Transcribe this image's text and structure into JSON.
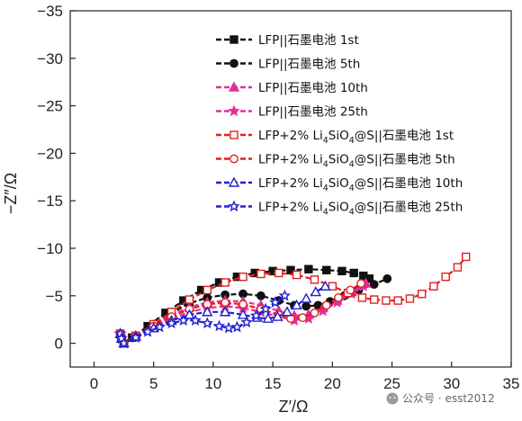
{
  "chart_data": {
    "type": "line",
    "xlabel": "Z′/Ω",
    "ylabel": "−Z″/Ω",
    "xlim": [
      -2,
      35
    ],
    "ylim": [
      2.5,
      -35
    ],
    "x_ticks": [
      0,
      5,
      10,
      15,
      20,
      25,
      30,
      35
    ],
    "y_ticks": [
      0,
      -5,
      -10,
      -15,
      -20,
      -25,
      -30,
      -35
    ],
    "y_axis_inverted": true,
    "legend_position": "top-right",
    "series": [
      {
        "name": "LFP||石墨电池 1st",
        "name_parts": [
          {
            "t": "LFP||石墨电池 1st"
          }
        ],
        "color": "#111111",
        "marker": "square-filled",
        "x": [
          2.2,
          2.3,
          2.5,
          3.2,
          4.5,
          6,
          7.5,
          9,
          10.5,
          12,
          13.5,
          15,
          16.5,
          18,
          19.5,
          20.8,
          21.8,
          22.6,
          23.1
        ],
        "y": [
          -1.0,
          -0.5,
          0,
          -0.6,
          -1.8,
          -3.2,
          -4.5,
          -5.6,
          -6.4,
          -7.0,
          -7.4,
          -7.6,
          -7.7,
          -7.8,
          -7.7,
          -7.6,
          -7.4,
          -7.1,
          -6.8
        ]
      },
      {
        "name": "LFP||石墨电池 5th",
        "name_parts": [
          {
            "t": "LFP||石墨电池 5th"
          }
        ],
        "color": "#111111",
        "marker": "circle-filled",
        "x": [
          2.2,
          2.3,
          2.5,
          3.5,
          5,
          6.5,
          8,
          9.5,
          11,
          12.5,
          14,
          15.5,
          16.8,
          17.8,
          18.8,
          19.8,
          21,
          22.2,
          23.5,
          24.6
        ],
        "y": [
          -1.0,
          -0.5,
          0,
          -0.8,
          -2.0,
          -3.2,
          -4.2,
          -4.8,
          -5.1,
          -5.2,
          -5.0,
          -4.5,
          -4.0,
          -3.9,
          -4.0,
          -4.4,
          -5.0,
          -5.6,
          -6.2,
          -6.8
        ]
      },
      {
        "name": "LFP||石墨电池 10th",
        "name_parts": [
          {
            "t": "LFP||石墨电池 10th"
          }
        ],
        "color": "#e0309a",
        "marker": "triangle-filled",
        "x": [
          2.2,
          2.3,
          2.5,
          3.5,
          5,
          6.5,
          8,
          9.5,
          11,
          12.5,
          14,
          15.5,
          16.8,
          18,
          19.2,
          20.4,
          21.6,
          22.8
        ],
        "y": [
          -1.0,
          -0.5,
          0,
          -0.8,
          -1.9,
          -3.0,
          -3.8,
          -4.3,
          -4.5,
          -4.4,
          -4.0,
          -3.4,
          -2.9,
          -3.0,
          -3.7,
          -4.5,
          -5.4,
          -6.3
        ]
      },
      {
        "name": "LFP||石墨电池 25th",
        "name_parts": [
          {
            "t": "LFP||石墨电池 25th"
          }
        ],
        "color": "#e0309a",
        "marker": "star-filled",
        "x": [
          2.2,
          2.3,
          2.5,
          3.5,
          5,
          6.5,
          8,
          9.5,
          11,
          12.5,
          14,
          15.5,
          16.8,
          18,
          19.2,
          20.4,
          21.6,
          22.6
        ],
        "y": [
          -1.0,
          -0.5,
          0,
          -0.7,
          -1.7,
          -2.6,
          -3.3,
          -3.7,
          -3.9,
          -3.7,
          -3.3,
          -2.8,
          -2.4,
          -2.6,
          -3.4,
          -4.3,
          -5.2,
          -6.0
        ]
      },
      {
        "name": "LFP+2% Li4SiO4@S||石墨电池 1st",
        "name_parts": [
          {
            "t": "LFP+2% Li"
          },
          {
            "t": "4",
            "sub": true
          },
          {
            "t": "SiO"
          },
          {
            "t": "4",
            "sub": true
          },
          {
            "t": "@S||石墨电池 1st"
          }
        ],
        "color": "#e02020",
        "marker": "square-open",
        "x": [
          2.2,
          2.3,
          2.5,
          3.5,
          5,
          6.5,
          8,
          9.5,
          11,
          12.5,
          14,
          15.5,
          17,
          18.5,
          20,
          21.3,
          22.5,
          23.5,
          24.5,
          25.5,
          26.5,
          27.5,
          28.5,
          29.5,
          30.5,
          31.2
        ],
        "y": [
          -1.0,
          -0.5,
          0,
          -0.8,
          -2.0,
          -3.3,
          -4.6,
          -5.6,
          -6.4,
          -7.0,
          -7.3,
          -7.4,
          -7.2,
          -6.7,
          -6.0,
          -5.3,
          -4.8,
          -4.6,
          -4.5,
          -4.5,
          -4.7,
          -5.2,
          -6.0,
          -7.0,
          -8.0,
          -9.1
        ]
      },
      {
        "name": "LFP+2% Li4SiO4@S||石墨电池 5th",
        "name_parts": [
          {
            "t": "LFP+2% Li"
          },
          {
            "t": "4",
            "sub": true
          },
          {
            "t": "SiO"
          },
          {
            "t": "4",
            "sub": true
          },
          {
            "t": "@S||石墨电池 5th"
          }
        ],
        "color": "#e02020",
        "marker": "circle-open",
        "x": [
          2.2,
          2.3,
          2.5,
          3.5,
          5,
          6.5,
          8,
          9.5,
          11,
          12.5,
          14,
          15.5,
          16.5,
          17.5,
          18.5,
          19.5,
          20.5,
          21.5,
          22.4
        ],
        "y": [
          -1.0,
          -0.5,
          0,
          -0.7,
          -1.8,
          -2.8,
          -3.6,
          -4.1,
          -4.3,
          -4.1,
          -3.6,
          -3.0,
          -2.6,
          -2.7,
          -3.2,
          -4.0,
          -4.8,
          -5.6,
          -6.3
        ]
      },
      {
        "name": "LFP+2% Li4SiO4@S||石墨电池 10th",
        "name_parts": [
          {
            "t": "LFP+2% Li"
          },
          {
            "t": "4",
            "sub": true
          },
          {
            "t": "SiO"
          },
          {
            "t": "4",
            "sub": true
          },
          {
            "t": "@S||石墨电池 10th"
          }
        ],
        "color": "#2020d0",
        "marker": "triangle-open",
        "x": [
          2.2,
          2.3,
          2.5,
          3.5,
          5,
          6.5,
          8,
          9.5,
          11,
          12.5,
          13.7,
          14.6,
          15.4,
          16.2,
          17.0,
          17.8,
          18.6,
          19.4
        ],
        "y": [
          -1.0,
          -0.5,
          0,
          -0.7,
          -1.6,
          -2.4,
          -3.0,
          -3.3,
          -3.3,
          -3.0,
          -2.7,
          -2.6,
          -2.8,
          -3.3,
          -4.0,
          -4.7,
          -5.4,
          -6.0
        ]
      },
      {
        "name": "LFP+2% Li4SiO4@S||石墨电池 25th",
        "name_parts": [
          {
            "t": "LFP+2% Li"
          },
          {
            "t": "4",
            "sub": true
          },
          {
            "t": "SiO"
          },
          {
            "t": "4",
            "sub": true
          },
          {
            "t": "@S||石墨电池 25th"
          }
        ],
        "color": "#2020d0",
        "marker": "star-open",
        "x": [
          2.2,
          2.3,
          2.5,
          3.5,
          4.5,
          5.5,
          6.5,
          7.5,
          8.5,
          9.5,
          10.5,
          11.3,
          12.0,
          12.8,
          13.6,
          14.4,
          15.2,
          16.0
        ],
        "y": [
          -1.0,
          -0.5,
          0,
          -0.6,
          -1.2,
          -1.7,
          -2.1,
          -2.4,
          -2.4,
          -2.1,
          -1.8,
          -1.6,
          -1.7,
          -2.2,
          -2.9,
          -3.6,
          -4.3,
          -5.0
        ]
      }
    ]
  },
  "watermark": "公众号 · esst2012"
}
